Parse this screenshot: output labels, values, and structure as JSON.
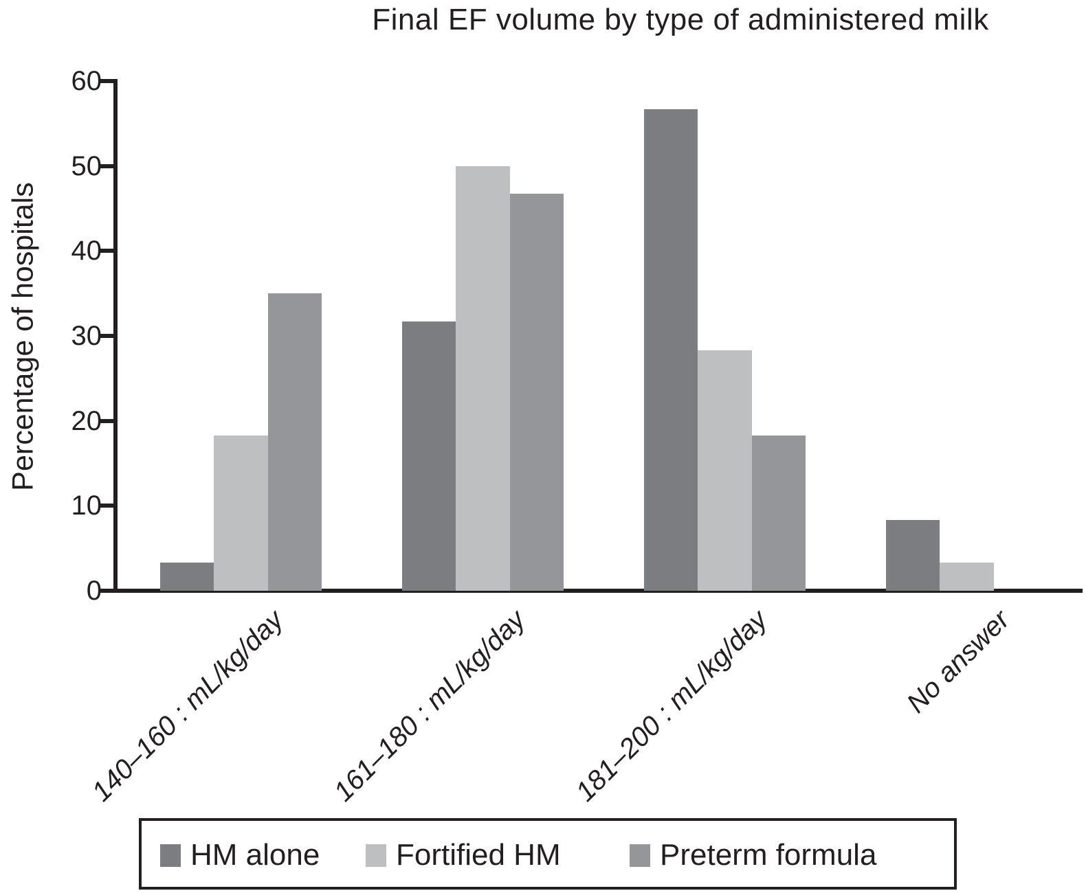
{
  "chart_data": {
    "type": "bar",
    "title": "Final EF volume by type of administered milk",
    "ylabel": "Percentage of hospitals",
    "xlabel": "",
    "ylim": [
      0,
      60
    ],
    "yticks": [
      0,
      10,
      20,
      30,
      40,
      50,
      60
    ],
    "categories": [
      "140–160 : mL/kg/day",
      "161–180 : mL/kg/day",
      "181–200 : mL/kg/day",
      "No answer"
    ],
    "series": [
      {
        "name": "HM alone",
        "color": "#7b7d81",
        "values": [
          3.3,
          31.7,
          56.7,
          8.3
        ]
      },
      {
        "name": "Fortified HM",
        "color": "#bdbfc1",
        "values": [
          18.3,
          50.0,
          28.3,
          3.3
        ]
      },
      {
        "name": "Preterm formula",
        "color": "#94969a",
        "values": [
          35.0,
          46.7,
          18.3,
          0
        ]
      }
    ],
    "legend_position": "bottom",
    "grid": false,
    "axis_color": "#231f20"
  }
}
